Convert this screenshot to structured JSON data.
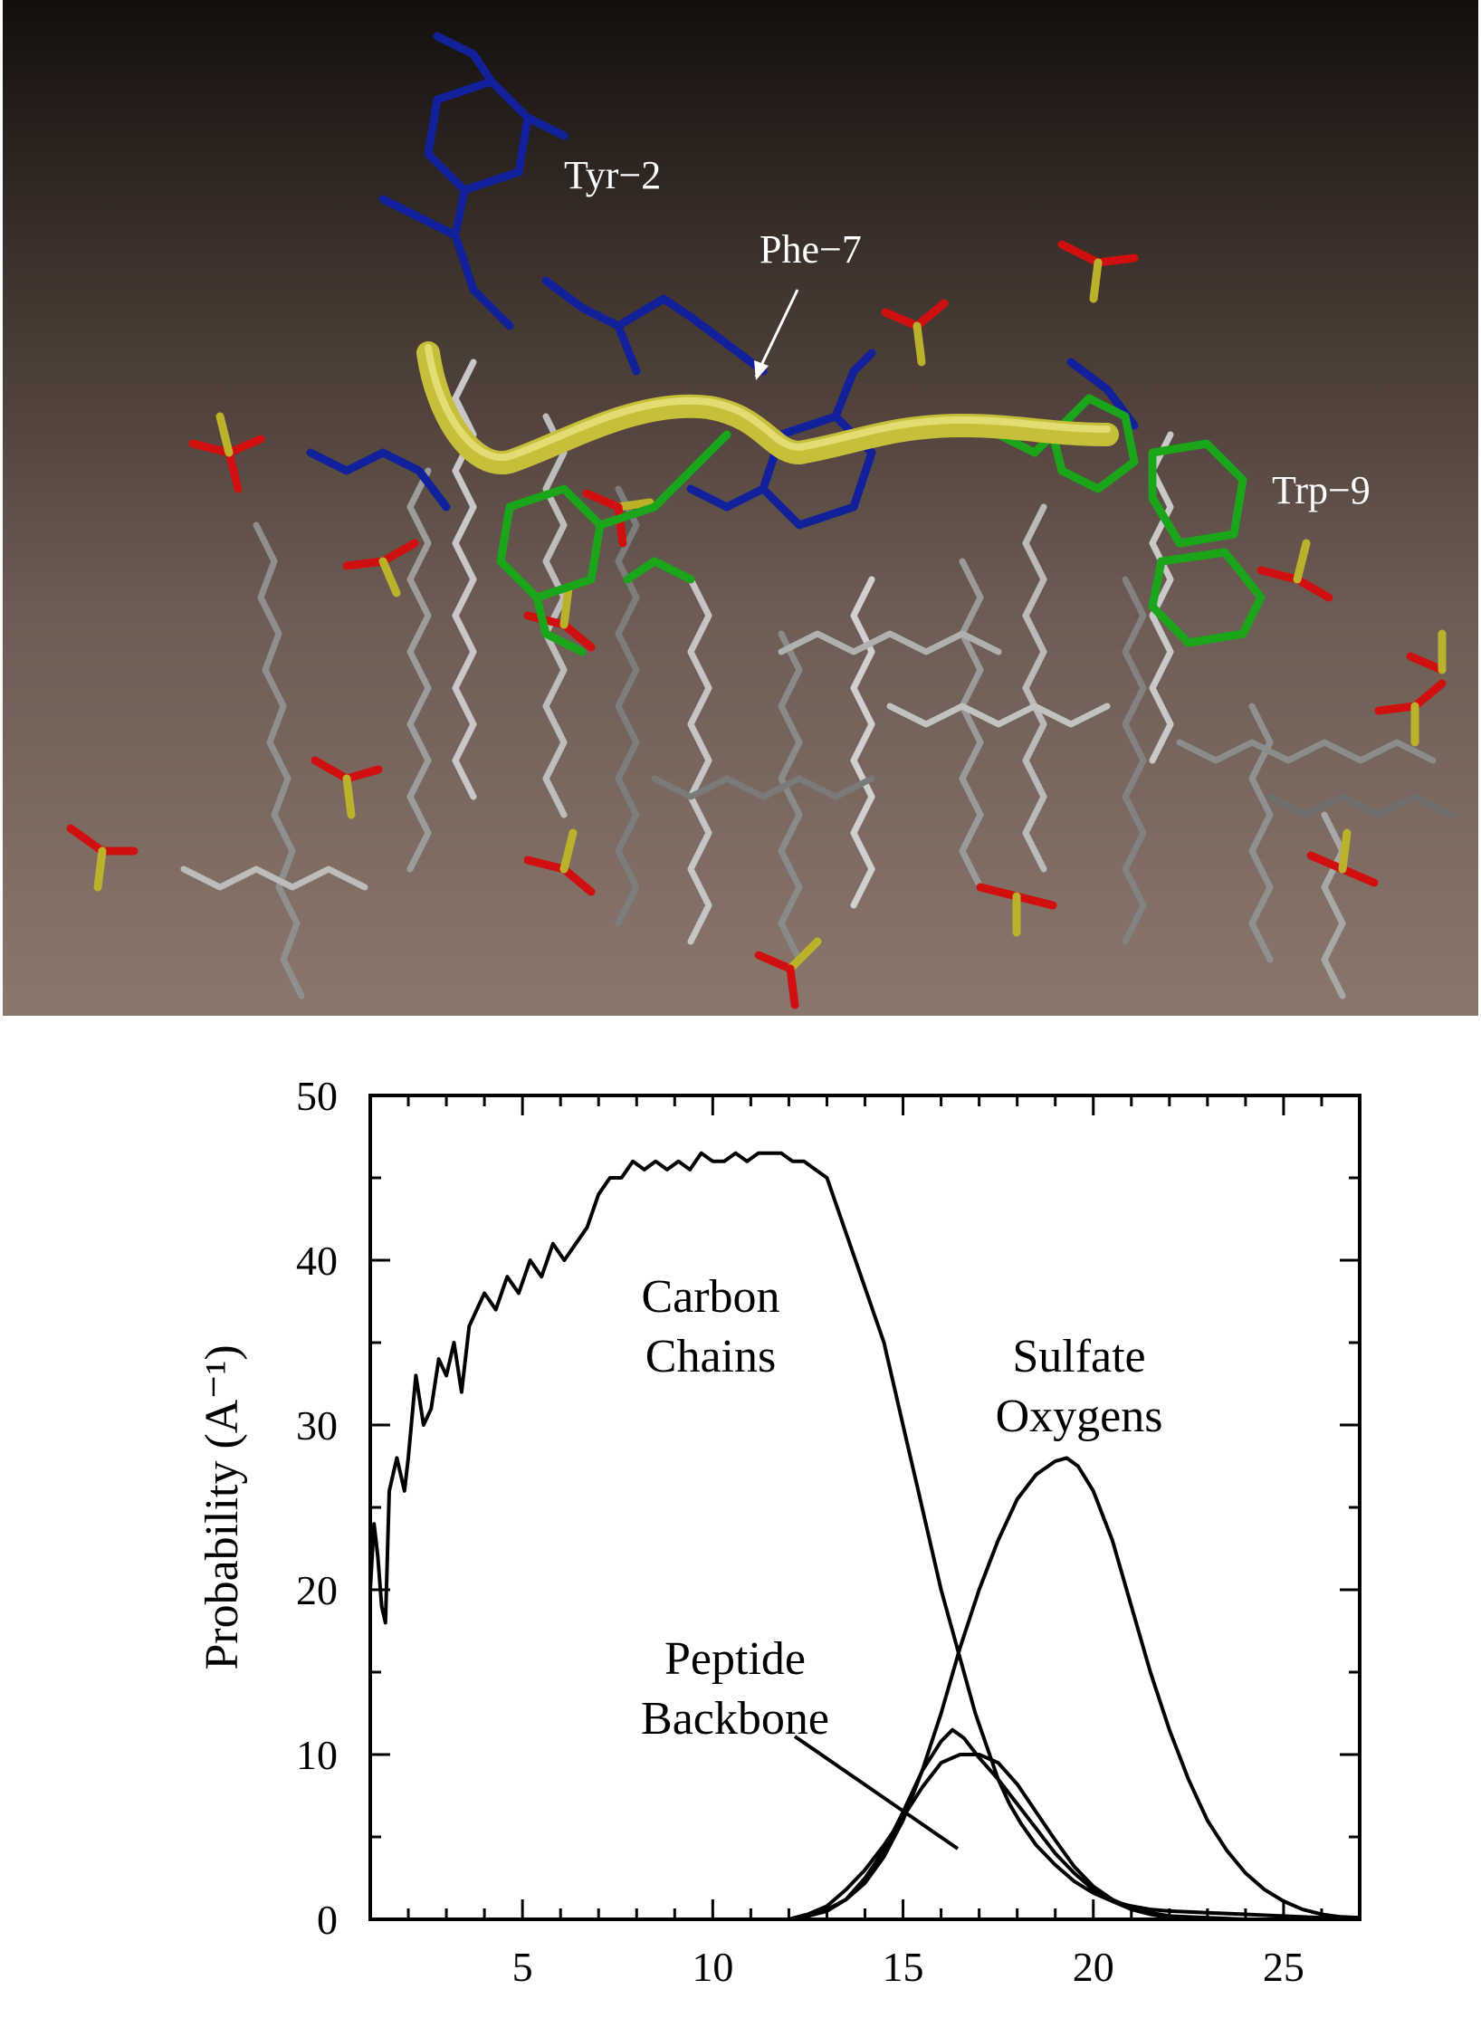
{
  "figure": {
    "molecule_labels": {
      "tyr": "Tyr−2",
      "phe": "Phe−7",
      "trp": "Trp−9"
    },
    "colors": {
      "blue_residue": "#12209a",
      "green_residue": "#1aa51a",
      "backbone_ribbon": "#c6bf3a",
      "lipid_chain": "#b4b4b4",
      "sulfate_sulfur": "#b9b22a",
      "sulfate_oxygen": "#d01010"
    }
  },
  "chart_data": {
    "type": "line",
    "xlim": [
      1,
      27
    ],
    "ylim": [
      0,
      50
    ],
    "xticks": [
      5,
      10,
      15,
      20,
      25
    ],
    "yticks": [
      0,
      10,
      20,
      30,
      40,
      50
    ],
    "ylabel": "Probability (A⁻¹)",
    "series": [
      {
        "name": "Carbon Chains",
        "label_lines": [
          "Carbon",
          "Chains"
        ],
        "points": [
          [
            1.0,
            20
          ],
          [
            1.1,
            24
          ],
          [
            1.2,
            22
          ],
          [
            1.3,
            19
          ],
          [
            1.4,
            18
          ],
          [
            1.5,
            26
          ],
          [
            1.7,
            28
          ],
          [
            1.9,
            26
          ],
          [
            2.0,
            28
          ],
          [
            2.2,
            33
          ],
          [
            2.4,
            30
          ],
          [
            2.6,
            31
          ],
          [
            2.8,
            34
          ],
          [
            3.0,
            33
          ],
          [
            3.2,
            35
          ],
          [
            3.4,
            32
          ],
          [
            3.6,
            36
          ],
          [
            3.8,
            37
          ],
          [
            4.0,
            38
          ],
          [
            4.3,
            37
          ],
          [
            4.6,
            39
          ],
          [
            4.9,
            38
          ],
          [
            5.2,
            40
          ],
          [
            5.5,
            39
          ],
          [
            5.8,
            41
          ],
          [
            6.1,
            40
          ],
          [
            6.4,
            41
          ],
          [
            6.7,
            42
          ],
          [
            7.0,
            44
          ],
          [
            7.3,
            45
          ],
          [
            7.6,
            45
          ],
          [
            7.9,
            46
          ],
          [
            8.2,
            45.5
          ],
          [
            8.5,
            46
          ],
          [
            8.8,
            45.5
          ],
          [
            9.1,
            46
          ],
          [
            9.4,
            45.5
          ],
          [
            9.7,
            46.5
          ],
          [
            10.0,
            46
          ],
          [
            10.3,
            46
          ],
          [
            10.6,
            46.5
          ],
          [
            10.9,
            46
          ],
          [
            11.2,
            46.5
          ],
          [
            11.5,
            46.5
          ],
          [
            11.8,
            46.5
          ],
          [
            12.1,
            46
          ],
          [
            12.4,
            46
          ],
          [
            12.7,
            45.5
          ],
          [
            13.0,
            45
          ],
          [
            13.3,
            43
          ],
          [
            13.6,
            41
          ],
          [
            13.9,
            39
          ],
          [
            14.2,
            37
          ],
          [
            14.5,
            35
          ],
          [
            14.8,
            32
          ],
          [
            15.1,
            29
          ],
          [
            15.4,
            26
          ],
          [
            15.7,
            23
          ],
          [
            16.0,
            20
          ],
          [
            16.3,
            17.5
          ],
          [
            16.6,
            15
          ],
          [
            16.9,
            12.5
          ],
          [
            17.2,
            10.5
          ],
          [
            17.5,
            8.5
          ],
          [
            17.8,
            7
          ],
          [
            18.1,
            5.8
          ],
          [
            18.5,
            4.5
          ],
          [
            19.0,
            3.3
          ],
          [
            19.5,
            2.3
          ],
          [
            20.0,
            1.6
          ],
          [
            20.5,
            1.1
          ],
          [
            21.0,
            0.8
          ],
          [
            21.5,
            0.6
          ],
          [
            22.0,
            0.5
          ],
          [
            23.0,
            0.4
          ],
          [
            24.0,
            0.3
          ],
          [
            25.0,
            0.2
          ],
          [
            26.0,
            0.1
          ],
          [
            27.0,
            0.1
          ]
        ]
      },
      {
        "name": "Sulfate Oxygens",
        "label_lines": [
          "Sulfate",
          "Oxygens"
        ],
        "points": [
          [
            12.0,
            0
          ],
          [
            12.5,
            0.3
          ],
          [
            13.0,
            0.6
          ],
          [
            13.5,
            1.2
          ],
          [
            14.0,
            2.2
          ],
          [
            14.5,
            3.8
          ],
          [
            15.0,
            6.0
          ],
          [
            15.5,
            9.0
          ],
          [
            16.0,
            12.5
          ],
          [
            16.5,
            16.5
          ],
          [
            17.0,
            20.0
          ],
          [
            17.5,
            23.0
          ],
          [
            18.0,
            25.5
          ],
          [
            18.5,
            27.0
          ],
          [
            19.0,
            27.8
          ],
          [
            19.3,
            28.0
          ],
          [
            19.6,
            27.5
          ],
          [
            20.0,
            26.0
          ],
          [
            20.5,
            23.0
          ],
          [
            21.0,
            19.0
          ],
          [
            21.5,
            15.0
          ],
          [
            22.0,
            11.5
          ],
          [
            22.5,
            8.5
          ],
          [
            23.0,
            6.0
          ],
          [
            23.5,
            4.2
          ],
          [
            24.0,
            2.8
          ],
          [
            24.5,
            1.8
          ],
          [
            25.0,
            1.1
          ],
          [
            25.5,
            0.6
          ],
          [
            26.0,
            0.3
          ],
          [
            26.5,
            0.15
          ],
          [
            27.0,
            0.1
          ]
        ]
      },
      {
        "name": "Peptide Backbone",
        "label_lines": [
          "Peptide",
          "Backbone"
        ],
        "points": [
          [
            12.0,
            0
          ],
          [
            12.5,
            0.3
          ],
          [
            13.0,
            0.8
          ],
          [
            13.5,
            1.8
          ],
          [
            14.0,
            3.0
          ],
          [
            14.5,
            4.5
          ],
          [
            15.0,
            6.2
          ],
          [
            15.5,
            8.0
          ],
          [
            16.0,
            9.5
          ],
          [
            16.5,
            10.0
          ],
          [
            17.0,
            10.0
          ],
          [
            17.5,
            9.5
          ],
          [
            18.0,
            8.2
          ],
          [
            18.5,
            6.5
          ],
          [
            19.0,
            4.8
          ],
          [
            19.5,
            3.2
          ],
          [
            20.0,
            2.0
          ],
          [
            20.5,
            1.2
          ],
          [
            21.0,
            0.7
          ],
          [
            21.5,
            0.4
          ],
          [
            22.0,
            0.2
          ],
          [
            23.0,
            0.1
          ],
          [
            24.0,
            0.0
          ]
        ]
      },
      {
        "name": "",
        "points": [
          [
            12.0,
            0
          ],
          [
            12.5,
            0.2
          ],
          [
            13.0,
            0.5
          ],
          [
            13.5,
            1.2
          ],
          [
            14.0,
            2.5
          ],
          [
            14.5,
            4.2
          ],
          [
            15.0,
            6.5
          ],
          [
            15.5,
            9.0
          ],
          [
            16.0,
            10.8
          ],
          [
            16.3,
            11.5
          ],
          [
            16.6,
            11.0
          ],
          [
            17.0,
            9.8
          ],
          [
            17.5,
            8.5
          ],
          [
            18.0,
            7.0
          ],
          [
            18.5,
            5.5
          ],
          [
            19.0,
            4.0
          ],
          [
            19.5,
            2.8
          ],
          [
            20.0,
            1.8
          ],
          [
            20.5,
            1.1
          ],
          [
            21.0,
            0.6
          ],
          [
            21.5,
            0.3
          ],
          [
            22.0,
            0.1
          ],
          [
            23.0,
            0.0
          ]
        ]
      }
    ]
  }
}
